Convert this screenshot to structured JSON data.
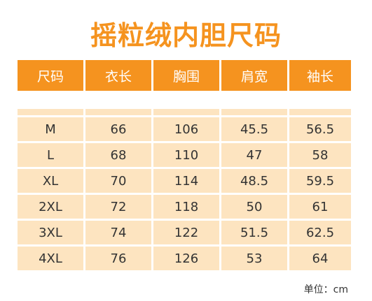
{
  "title": "摇粒绒内胆尺码",
  "table": {
    "headers": [
      "尺码",
      "衣长",
      "胸围",
      "肩宽",
      "袖长"
    ],
    "rows": [
      [
        "M",
        "66",
        "106",
        "45.5",
        "56.5"
      ],
      [
        "L",
        "68",
        "110",
        "47",
        "58"
      ],
      [
        "XL",
        "70",
        "114",
        "48.5",
        "59.5"
      ],
      [
        "2XL",
        "72",
        "118",
        "50",
        "61"
      ],
      [
        "3XL",
        "74",
        "122",
        "51.5",
        "62.5"
      ],
      [
        "4XL",
        "76",
        "126",
        "53",
        "64"
      ]
    ]
  },
  "unit_label": "单位：cm",
  "colors": {
    "accent": "#f5931f",
    "cell_background": "#fde4c0",
    "text": "#333333"
  }
}
